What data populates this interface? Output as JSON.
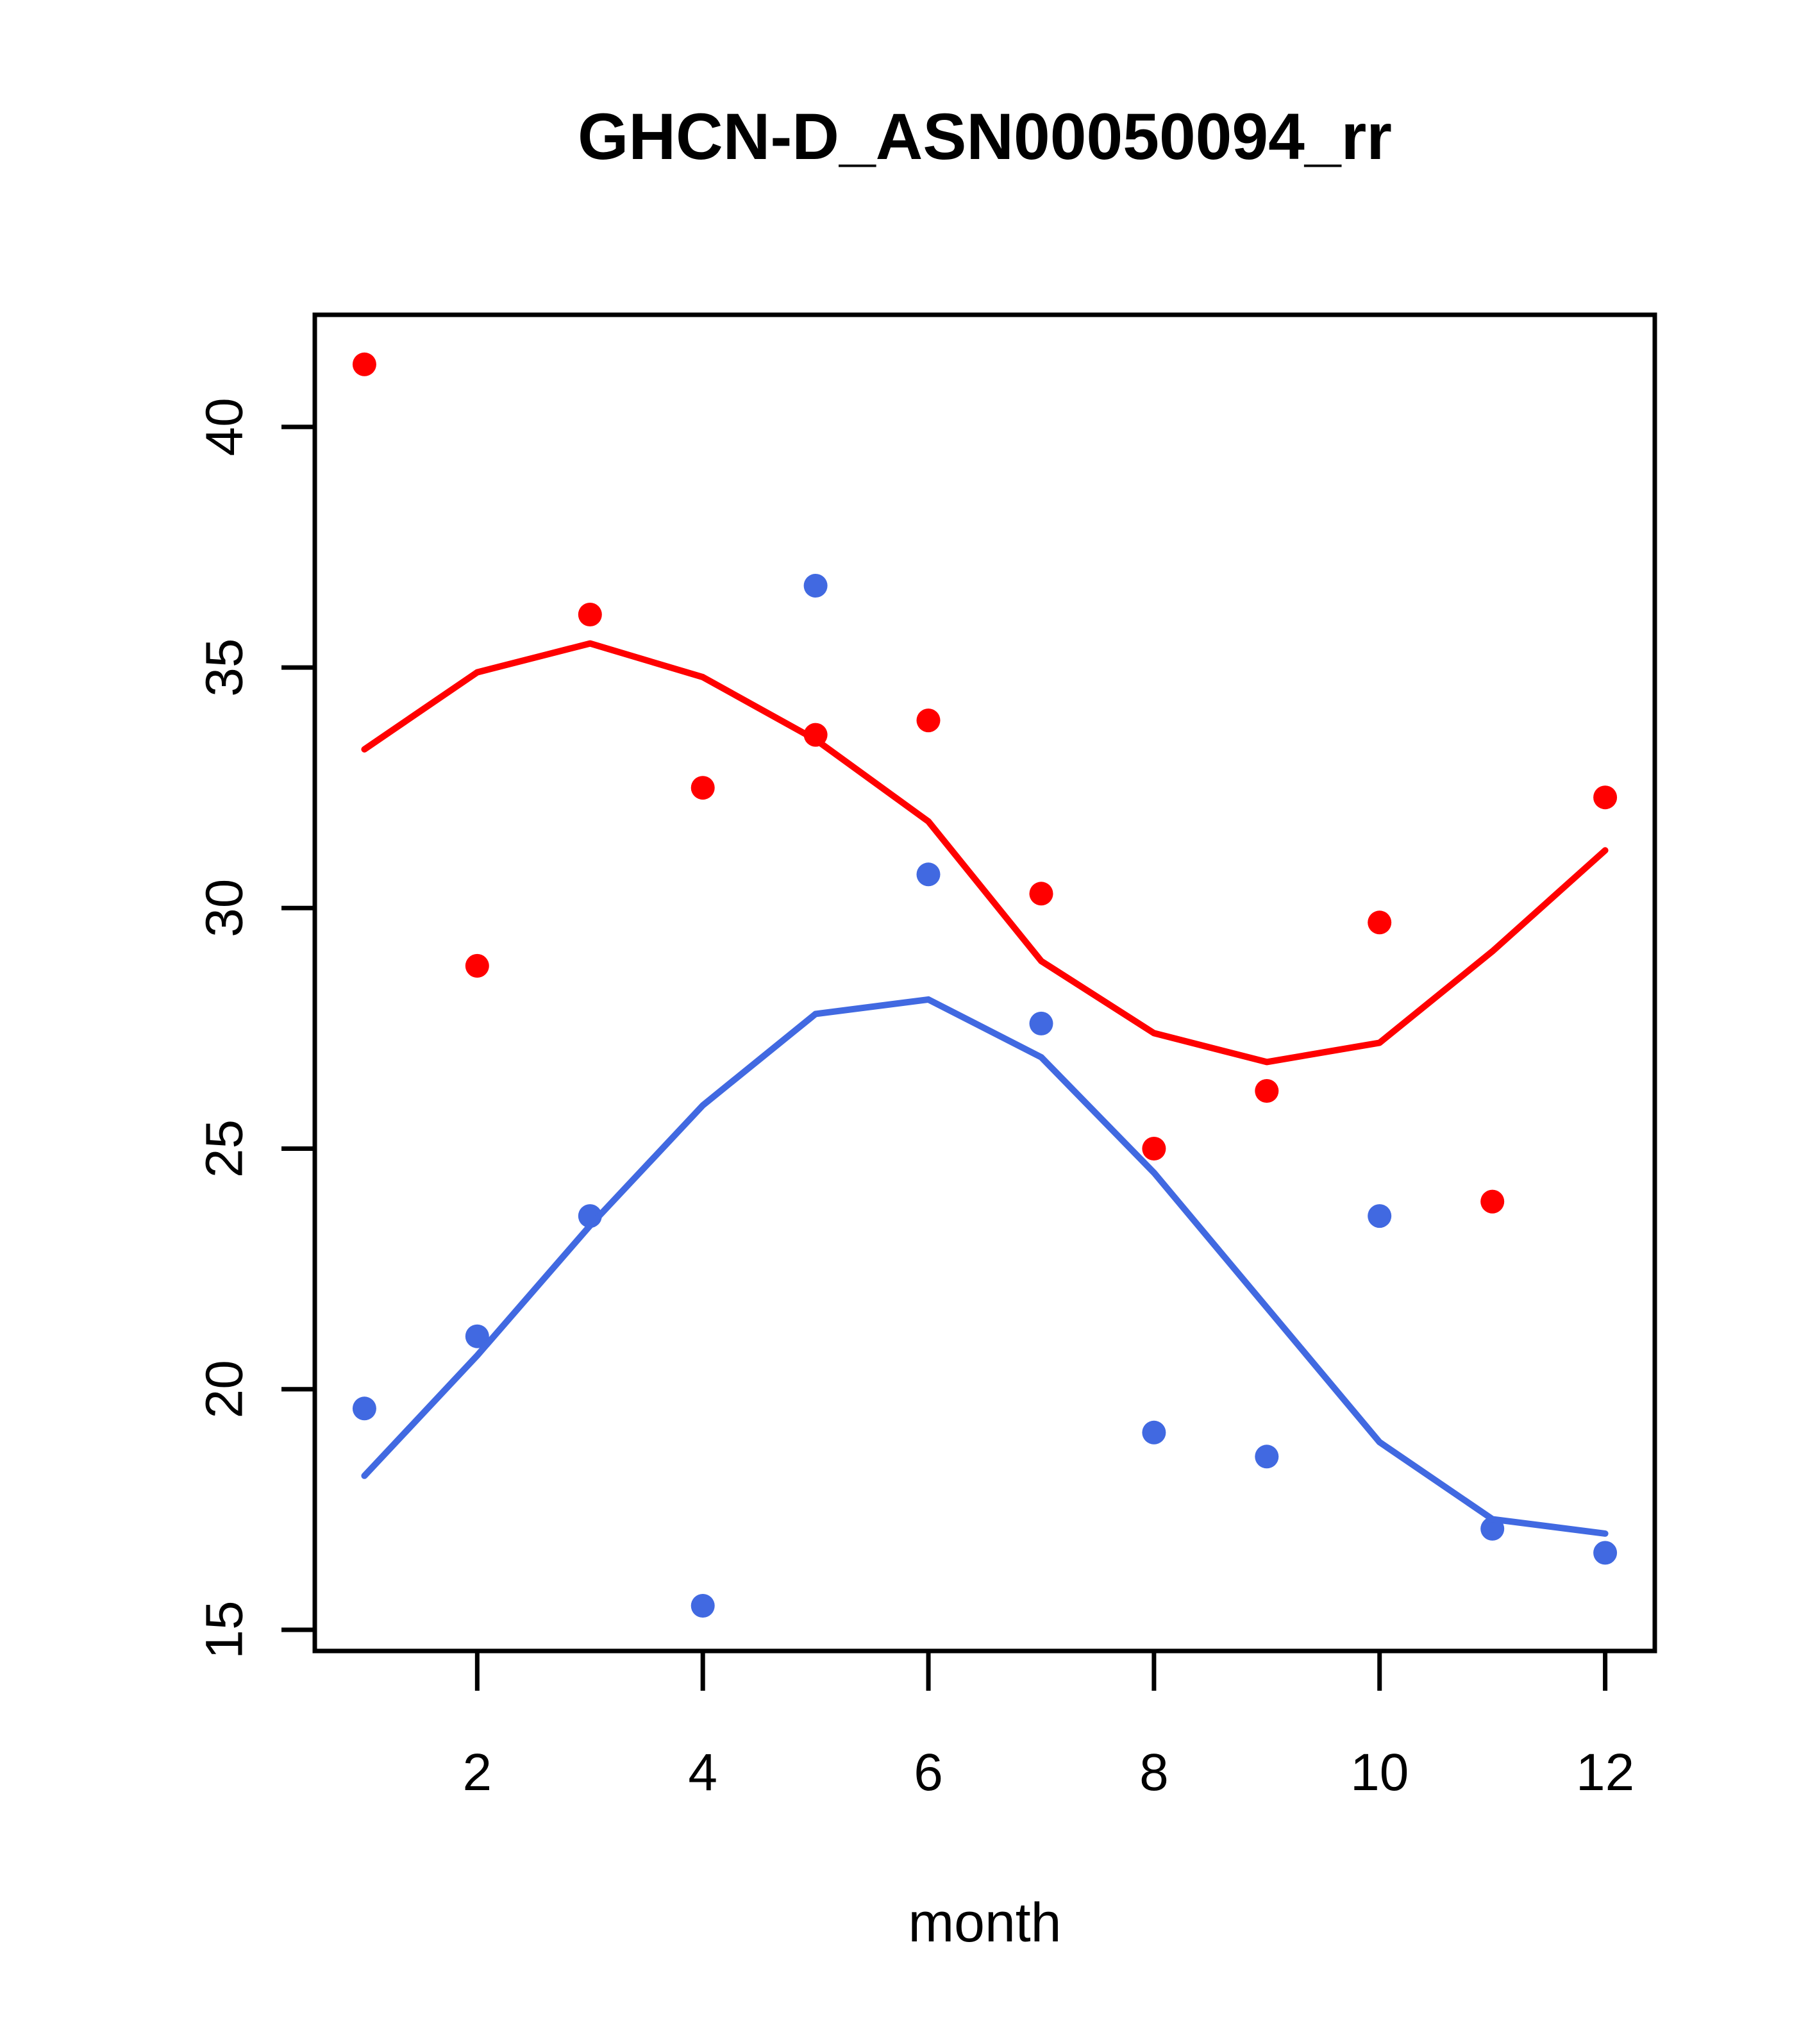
{
  "title": "GHCN-D_ASN00050094_rr",
  "chart_data": {
    "type": "scatter",
    "title": "GHCN-D_ASN00050094_rr",
    "xlabel": "month",
    "ylabel": "",
    "x": [
      1,
      2,
      3,
      4,
      5,
      6,
      7,
      8,
      9,
      10,
      11,
      12
    ],
    "xticks": [
      2,
      4,
      6,
      8,
      10,
      12
    ],
    "yticks": [
      15,
      20,
      25,
      30,
      35,
      40
    ],
    "xlim": [
      0.56,
      12.44
    ],
    "ylim": [
      14.56,
      42.33
    ],
    "grid": false,
    "legend": "none",
    "colors": {
      "red": "#FF0000",
      "blue": "#4169E1"
    },
    "series": [
      {
        "name": "red-points",
        "kind": "points",
        "color": "#FF0000",
        "values": [
          41.3,
          28.8,
          36.1,
          32.5,
          33.6,
          33.9,
          30.3,
          25.0,
          26.2,
          29.7,
          23.9,
          32.3
        ]
      },
      {
        "name": "blue-points",
        "kind": "points",
        "color": "#4169E1",
        "values": [
          19.6,
          21.1,
          23.6,
          15.5,
          36.7,
          30.7,
          27.6,
          19.1,
          18.6,
          23.6,
          17.1,
          16.6
        ]
      },
      {
        "name": "red-lowess-line",
        "kind": "line",
        "color": "#FF0000",
        "values": [
          33.3,
          34.9,
          35.5,
          34.8,
          33.5,
          31.8,
          28.9,
          27.4,
          26.8,
          27.2,
          29.1,
          31.2
        ]
      },
      {
        "name": "blue-lowess-line",
        "kind": "line",
        "color": "#4169E1",
        "values": [
          18.2,
          20.7,
          23.4,
          25.9,
          27.8,
          28.1,
          26.9,
          24.5,
          21.7,
          18.9,
          17.3,
          17.0
        ]
      }
    ]
  }
}
